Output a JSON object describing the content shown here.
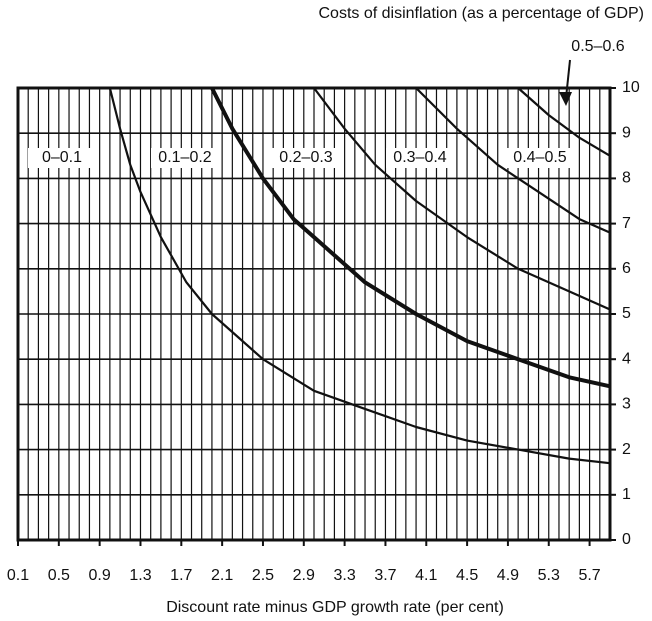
{
  "chart_data": {
    "type": "line",
    "title": "Costs of disinflation (as a percentage of GDP)",
    "xlabel": "Discount rate minus GDP growth rate (per cent)",
    "xlim": [
      0.1,
      5.9
    ],
    "xticks": [
      0.1,
      0.5,
      0.9,
      1.3,
      1.7,
      2.1,
      2.5,
      2.9,
      3.3,
      3.7,
      4.1,
      4.5,
      4.9,
      5.3,
      5.7
    ],
    "minor_xticks": [
      0.1,
      0.2,
      0.3,
      0.4,
      0.5,
      0.6,
      0.7,
      0.8,
      0.9,
      1.0,
      1.1,
      1.2,
      1.3,
      1.4,
      1.5,
      1.6,
      1.7,
      1.8,
      1.9,
      2.0,
      2.1,
      2.2,
      2.3,
      2.4,
      2.5,
      2.6,
      2.7,
      2.8,
      2.9,
      3.0,
      3.1,
      3.2,
      3.3,
      3.4,
      3.5,
      3.6,
      3.7,
      3.8,
      3.9,
      4.0,
      4.1,
      4.2,
      4.3,
      4.4,
      4.5,
      4.6,
      4.7,
      4.8,
      4.9,
      5.0,
      5.1,
      5.2,
      5.3,
      5.4,
      5.5,
      5.6,
      5.7,
      5.8,
      5.9
    ],
    "ylim": [
      0,
      10
    ],
    "yticks": [
      0,
      1,
      2,
      3,
      4,
      5,
      6,
      7,
      8,
      9,
      10
    ],
    "grid": true,
    "color": "#111111",
    "series": [
      {
        "line_width": 2.2,
        "x": [
          1.0,
          1.1,
          1.2,
          1.3,
          1.5,
          1.75,
          2.0,
          2.5,
          3.0,
          3.5,
          4.0,
          4.5,
          5.0,
          5.5,
          5.9
        ],
        "values": [
          10,
          9.1,
          8.3,
          7.7,
          6.7,
          5.7,
          5,
          4,
          3.3,
          2.9,
          2.5,
          2.2,
          2,
          1.8,
          1.7
        ]
      },
      {
        "line_width": 4,
        "x": [
          2.0,
          2.2,
          2.5,
          2.8,
          3.0,
          3.5,
          4.0,
          4.5,
          5.0,
          5.5,
          5.9
        ],
        "values": [
          10,
          9.1,
          8,
          7.1,
          6.7,
          5.7,
          5,
          4.4,
          4,
          3.6,
          3.4
        ]
      },
      {
        "line_width": 2.2,
        "x": [
          3.0,
          3.3,
          3.6,
          4.0,
          4.5,
          5.0,
          5.5,
          5.9
        ],
        "values": [
          10,
          9.1,
          8.3,
          7.5,
          6.7,
          6,
          5.5,
          5.1
        ]
      },
      {
        "line_width": 2.2,
        "x": [
          4.0,
          4.4,
          4.8,
          5.2,
          5.6,
          5.9
        ],
        "values": [
          10,
          9.1,
          8.3,
          7.7,
          7.1,
          6.8
        ]
      },
      {
        "line_width": 2.2,
        "x": [
          5.0,
          5.3,
          5.6,
          5.9
        ],
        "values": [
          10,
          9.4,
          8.9,
          8.5
        ]
      }
    ],
    "annotations": [
      "0–0.1",
      "0.1–0.2",
      "0.2–0.3",
      "0.3–0.4",
      "0.4–0.5",
      "0.5–0.6"
    ]
  }
}
